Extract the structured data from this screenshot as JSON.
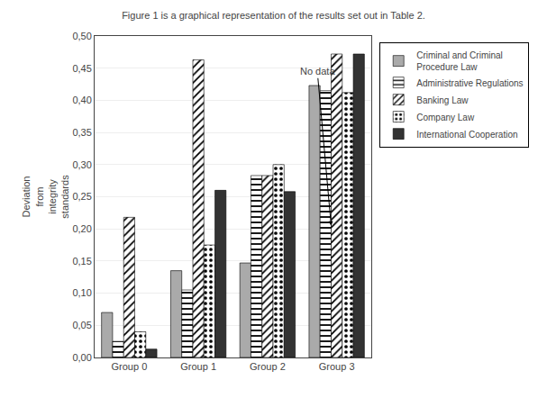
{
  "chart_data": {
    "type": "bar",
    "title": "Figure 1 is a graphical representation of the results set out in Table 2.",
    "categories": [
      "Group 0",
      "Group 1",
      "Group 2",
      "Group 3"
    ],
    "series": [
      {
        "name": "Criminal and Criminal\nProcedure Law",
        "color": "#aaaaaa",
        "values": [
          0.07,
          0.135,
          0.147,
          0.423
        ]
      },
      {
        "name": "Administrative Regulations",
        "color": "#ffffff",
        "marker": "hatch-horizontal",
        "values": [
          0.025,
          0.105,
          0.283,
          0.415
        ]
      },
      {
        "name": "Banking Law",
        "color": "#ffffff",
        "marker": "hatch-diagonal",
        "values": [
          0.218,
          0.463,
          0.283,
          0.472
        ]
      },
      {
        "name": "Company Law",
        "color": "#ffffff",
        "marker": "hatch-dots",
        "values": [
          0.04,
          0.175,
          0.3,
          0.412
        ]
      },
      {
        "name": "International Cooperation",
        "color": "#333333",
        "values": [
          0.013,
          0.26,
          0.258,
          0.472
        ]
      }
    ],
    "ylabel": "Deviation\nfrom\nintegrity\nstandards",
    "ylim": [
      0.0,
      0.5
    ],
    "yticks": [
      {
        "value": 0.0,
        "label": "0,00"
      },
      {
        "value": 0.05,
        "label": "0,05"
      },
      {
        "value": 0.1,
        "label": "0,10"
      },
      {
        "value": 0.15,
        "label": "0,15"
      },
      {
        "value": 0.2,
        "label": "0,20"
      },
      {
        "value": 0.25,
        "label": "0,25"
      },
      {
        "value": 0.3,
        "label": "0,30"
      },
      {
        "value": 0.35,
        "label": "0,35"
      },
      {
        "value": 0.4,
        "label": "0,40"
      },
      {
        "value": 0.45,
        "label": "0,45"
      },
      {
        "value": 0.5,
        "label": "0,50"
      }
    ],
    "annotations": [
      {
        "text": "No data",
        "x": 2.92,
        "y": 0.205,
        "text_x": 2.72,
        "text_y": 0.445
      }
    ],
    "grid": true,
    "legend": "right"
  }
}
